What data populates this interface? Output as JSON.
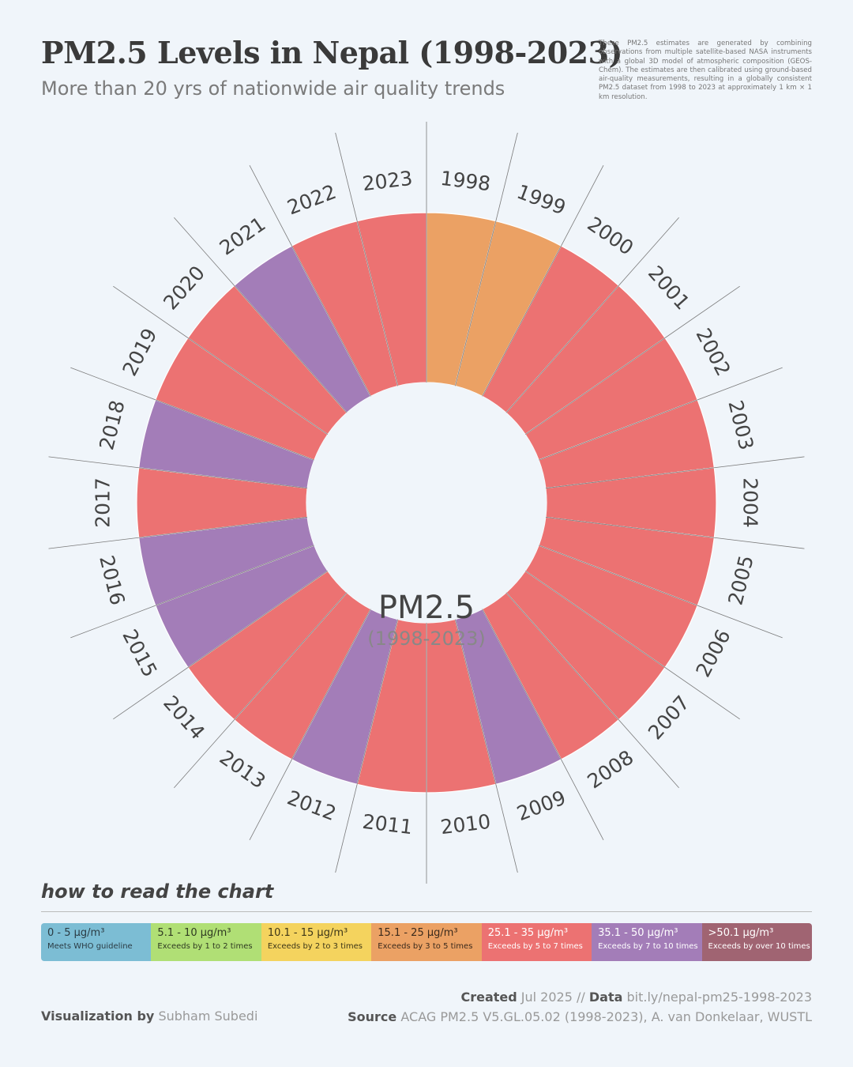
{
  "header": {
    "title": "PM2.5 Levels in Nepal (1998-2023)",
    "subtitle": "More than 20 yrs of nationwide air quality trends",
    "note": "These PM2.5 estimates are generated by combining observations from multiple satellite-based NASA instruments with a global 3D model of atmospheric composition (GEOS-Chem). The estimates are then calibrated using ground-based air-quality measurements, resulting in a globally consistent PM2.5 dataset from 1998 to 2023 at approximately 1 km × 1 km resolution."
  },
  "chart_data": {
    "type": "radial_bar",
    "center_label": "PM2.5",
    "center_sublabel": "(1998-2023)",
    "categories": [
      "1998",
      "1999",
      "2000",
      "2001",
      "2002",
      "2003",
      "2004",
      "2005",
      "2006",
      "2007",
      "2008",
      "2009",
      "2010",
      "2011",
      "2012",
      "2013",
      "2014",
      "2015",
      "2016",
      "2017",
      "2018",
      "2019",
      "2020",
      "2021",
      "2022",
      "2023"
    ],
    "category_band": [
      "15.1 - 25",
      "15.1 - 25",
      "25.1 - 35",
      "25.1 - 35",
      "25.1 - 35",
      "25.1 - 35",
      "25.1 - 35",
      "25.1 - 35",
      "25.1 - 35",
      "25.1 - 35",
      "25.1 - 35",
      "35.1 - 50",
      "25.1 - 35",
      "25.1 - 35",
      "35.1 - 50",
      "25.1 - 35",
      "25.1 - 35",
      "35.1 - 50",
      "35.1 - 50",
      "25.1 - 35",
      "35.1 - 50",
      "25.1 - 35",
      "25.1 - 35",
      "35.1 - 50",
      "25.1 - 35",
      "25.1 - 35"
    ],
    "band_colors": {
      "0 - 5": "#7cbdd4",
      "5.1 - 10": "#b0df75",
      "10.1 - 15": "#f4d35e",
      "15.1 - 25": "#eba164",
      "25.1 - 35": "#ec7272",
      "35.1 - 50": "#a37db8",
      ">50.1": "#a06472"
    }
  },
  "legend": {
    "title": "how to read the chart",
    "items": [
      {
        "range": "0 - 5 µg/m³",
        "desc": "Meets WHO guideline",
        "color": "#7cbdd4",
        "text": "#2b3c44"
      },
      {
        "range": "5.1 - 10 µg/m³",
        "desc": "Exceeds by 1 to 2 times",
        "color": "#b0df75",
        "text": "#2f3a22"
      },
      {
        "range": "10.1 - 15 µg/m³",
        "desc": "Exceeds by 2 to 3 times",
        "color": "#f4d35e",
        "text": "#3d3618"
      },
      {
        "range": "15.1 - 25 µg/m³",
        "desc": "Exceeds by 3 to 5 times",
        "color": "#eba164",
        "text": "#3b2a1c"
      },
      {
        "range": "25.1 - 35 µg/m³",
        "desc": "Exceeds by 5 to 7 times",
        "color": "#ec7272",
        "text": "#ffffff"
      },
      {
        "range": "35.1 - 50 µg/m³",
        "desc": "Exceeds by 7 to 10 times",
        "color": "#a37db8",
        "text": "#ffffff"
      },
      {
        "range": ">50.1 µg/m³",
        "desc": "Exceeds by over 10 times",
        "color": "#a06472",
        "text": "#ffffff"
      }
    ]
  },
  "credits": {
    "created_label": "Created",
    "created_value": "Jul 2025 //",
    "data_label": "Data",
    "data_value": "bit.ly/nepal-pm25-1998-2023",
    "viz_label": "Visualization by",
    "viz_value": "Subham Subedi",
    "source_label": "Source",
    "source_value": "ACAG PM2.5 V5.GL.05.02 (1998-2023), A. van Donkelaar, WUSTL"
  }
}
